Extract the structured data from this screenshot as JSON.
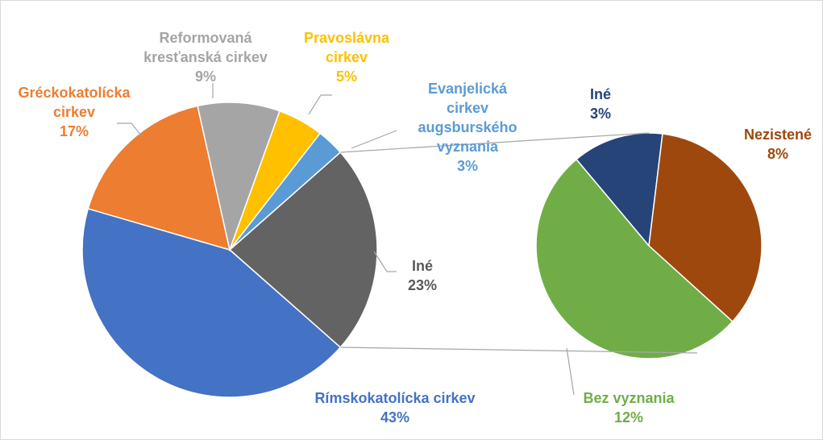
{
  "chart_data": {
    "type": "pie-of-pie",
    "categories": [
      "Iné",
      "Rímskokatolícka cirkev",
      "Gréckokatolícka cirkev",
      "Reformovaná kresťanská cirkev",
      "Pravoslávna cirkev",
      "Evanjelická cirkev augsburského vyznania"
    ],
    "values": [
      23,
      43,
      17,
      9,
      5,
      3
    ],
    "value_labels": [
      "23%",
      "43%",
      "17%",
      "9%",
      "5%",
      "3%"
    ],
    "colors": [
      "#636363",
      "#4472c4",
      "#ed7d31",
      "#a5a5a5",
      "#ffc000",
      "#5b9bd5"
    ],
    "secondary": {
      "categories": [
        "Iné",
        "Nezistené",
        "Bez vyznania"
      ],
      "values": [
        3,
        8,
        12
      ],
      "value_labels": [
        "3%",
        "8%",
        "12%"
      ],
      "colors": [
        "#264478",
        "#9e480e",
        "#70ad47"
      ]
    }
  }
}
